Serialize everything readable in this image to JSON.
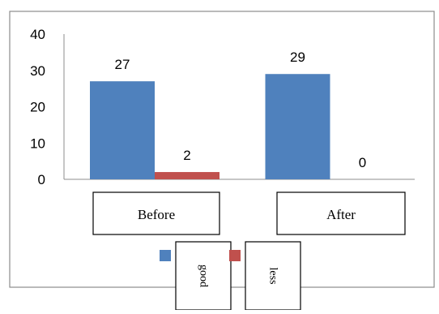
{
  "chart_data": {
    "type": "bar",
    "categories": [
      "Before",
      "After"
    ],
    "series": [
      {
        "name": "good",
        "values": [
          27,
          29
        ],
        "color": "#4f81bd"
      },
      {
        "name": "less",
        "values": [
          2,
          0
        ],
        "color": "#c0504d"
      }
    ],
    "data_labels": [
      [
        "27",
        "29"
      ],
      [
        "2",
        "0"
      ]
    ],
    "y_ticks": [
      0,
      10,
      20,
      30,
      40
    ],
    "ylim": [
      0,
      40
    ],
    "grid": false,
    "legend_position": "bottom",
    "title": "",
    "xlabel": "",
    "ylabel": ""
  }
}
